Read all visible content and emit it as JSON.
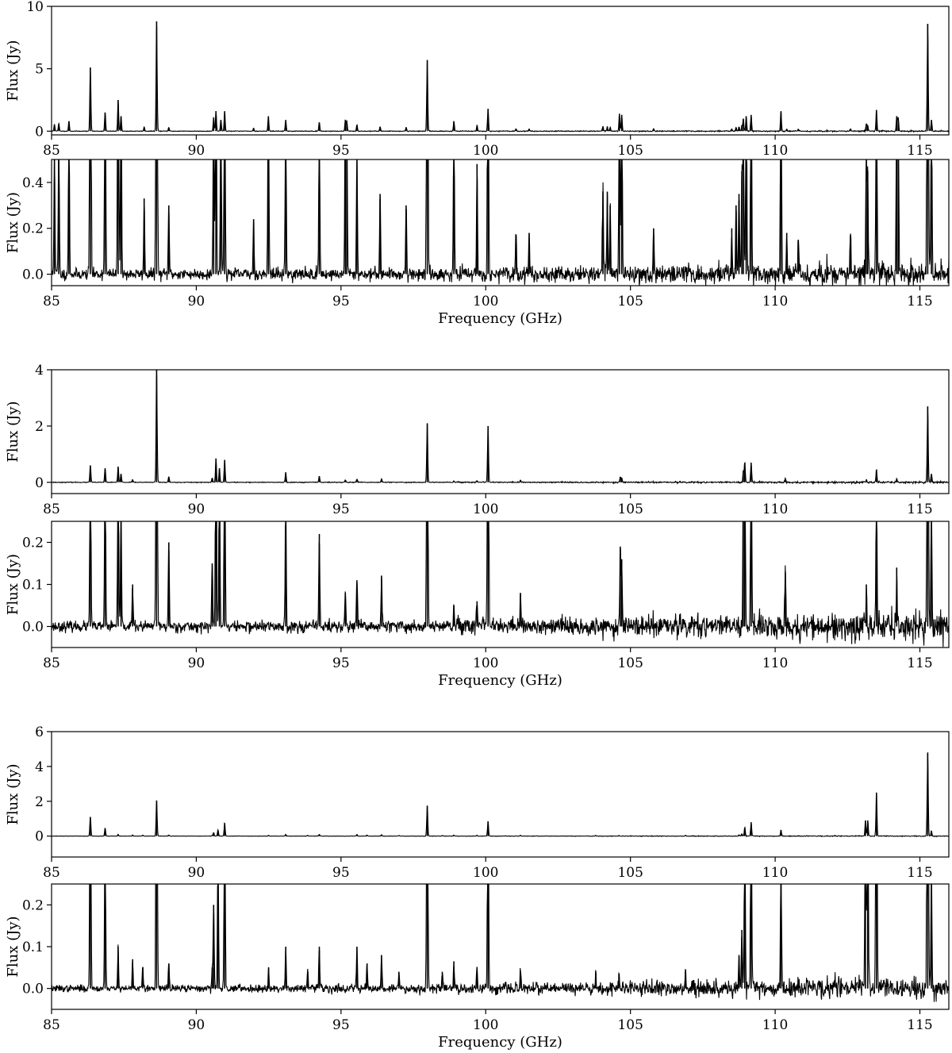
{
  "panels": [
    {
      "id": "p1",
      "ylabel": "Flux (Jy)",
      "xlabel": "",
      "xlim": [
        85,
        116
      ],
      "ylim": [
        -0.3,
        10
      ],
      "yticks": [
        0,
        5,
        10
      ],
      "ytick_labels": [
        "0",
        "5",
        "10"
      ],
      "seed": 11,
      "noise": 0.012,
      "noise_growth": 1.3
    },
    {
      "id": "p2",
      "ylabel": "Flux (Jy)",
      "xlabel": "Frequency (GHz)",
      "xlim": [
        85,
        116
      ],
      "ylim": [
        -0.05,
        0.5
      ],
      "yticks": [
        0.0,
        0.2,
        0.4
      ],
      "ytick_labels": [
        "0.0",
        "0.2",
        "0.4"
      ],
      "seed": 11,
      "noise": 0.012,
      "noise_growth": 1.3
    },
    {
      "id": "p3",
      "ylabel": "Flux (Jy)",
      "xlabel": "",
      "xlim": [
        85,
        116
      ],
      "ylim": [
        -0.4,
        4
      ],
      "yticks": [
        0,
        2,
        4
      ],
      "ytick_labels": [
        "0",
        "2",
        "4"
      ],
      "seed": 23,
      "noise": 0.006,
      "noise_growth": 2.2
    },
    {
      "id": "p4",
      "ylabel": "Flux (Jy)",
      "xlabel": "Frequency (GHz)",
      "xlim": [
        85,
        116
      ],
      "ylim": [
        -0.05,
        0.25
      ],
      "yticks": [
        0.0,
        0.1,
        0.2
      ],
      "ytick_labels": [
        "0.0",
        "0.1",
        "0.2"
      ],
      "seed": 23,
      "noise": 0.006,
      "noise_growth": 2.2
    },
    {
      "id": "p5",
      "ylabel": "Flux (Jy)",
      "xlabel": "",
      "xlim": [
        85,
        116
      ],
      "ylim": [
        -1.2,
        6
      ],
      "yticks": [
        0,
        2,
        4,
        6
      ],
      "ytick_labels": [
        "0",
        "2",
        "4",
        "6"
      ],
      "seed": 37,
      "noise": 0.004,
      "noise_growth": 2.5
    },
    {
      "id": "p6",
      "ylabel": "Flux (Jy)",
      "xlabel": "Frequency (GHz)",
      "xlim": [
        85,
        116
      ],
      "ylim": [
        -0.05,
        0.25
      ],
      "yticks": [
        0.0,
        0.1,
        0.2
      ],
      "ytick_labels": [
        "0.0",
        "0.1",
        "0.2"
      ],
      "seed": 37,
      "noise": 0.004,
      "noise_growth": 2.5
    }
  ],
  "xticks": [
    85,
    90,
    95,
    100,
    105,
    110,
    115
  ],
  "xtick_labels": [
    "85",
    "90",
    "95",
    "100",
    "105",
    "110",
    "115"
  ],
  "chart_data": [
    {
      "type": "line",
      "name": "spectrum-1",
      "xlabel": "Frequency (GHz)",
      "ylabel": "Flux (Jy)",
      "xlim": [
        85,
        116
      ],
      "ylim_full": [
        -0.3,
        10
      ],
      "ylim_zoom": [
        -0.05,
        0.5
      ],
      "lines": [
        {
          "x": 85.1,
          "y": 0.55
        },
        {
          "x": 85.25,
          "y": 0.6
        },
        {
          "x": 85.6,
          "y": 0.8
        },
        {
          "x": 86.34,
          "y": 5.1
        },
        {
          "x": 86.85,
          "y": 1.5
        },
        {
          "x": 87.3,
          "y": 2.5
        },
        {
          "x": 87.4,
          "y": 1.2
        },
        {
          "x": 88.2,
          "y": 0.33
        },
        {
          "x": 88.63,
          "y": 8.8
        },
        {
          "x": 89.05,
          "y": 0.3
        },
        {
          "x": 90.6,
          "y": 1.1
        },
        {
          "x": 90.68,
          "y": 1.6
        },
        {
          "x": 90.85,
          "y": 0.9
        },
        {
          "x": 90.98,
          "y": 1.6
        },
        {
          "x": 91.98,
          "y": 0.24
        },
        {
          "x": 92.49,
          "y": 1.2
        },
        {
          "x": 93.09,
          "y": 0.9
        },
        {
          "x": 94.25,
          "y": 0.7
        },
        {
          "x": 95.15,
          "y": 0.9
        },
        {
          "x": 95.2,
          "y": 0.8
        },
        {
          "x": 95.55,
          "y": 0.5
        },
        {
          "x": 96.35,
          "y": 0.35
        },
        {
          "x": 97.25,
          "y": 0.3
        },
        {
          "x": 97.98,
          "y": 5.7
        },
        {
          "x": 98.9,
          "y": 0.8
        },
        {
          "x": 99.7,
          "y": 0.48
        },
        {
          "x": 100.08,
          "y": 1.8
        },
        {
          "x": 101.05,
          "y": 0.17
        },
        {
          "x": 101.5,
          "y": 0.18
        },
        {
          "x": 104.05,
          "y": 0.36
        },
        {
          "x": 104.2,
          "y": 0.36
        },
        {
          "x": 104.3,
          "y": 0.3
        },
        {
          "x": 104.62,
          "y": 1.4
        },
        {
          "x": 104.7,
          "y": 1.3
        },
        {
          "x": 105.8,
          "y": 0.2
        },
        {
          "x": 108.5,
          "y": 0.2
        },
        {
          "x": 108.65,
          "y": 0.3
        },
        {
          "x": 108.75,
          "y": 0.35
        },
        {
          "x": 108.85,
          "y": 0.45
        },
        {
          "x": 108.9,
          "y": 1.0
        },
        {
          "x": 109.0,
          "y": 1.2
        },
        {
          "x": 109.17,
          "y": 1.3
        },
        {
          "x": 110.2,
          "y": 1.6
        },
        {
          "x": 110.4,
          "y": 0.18
        },
        {
          "x": 110.8,
          "y": 0.15
        },
        {
          "x": 112.6,
          "y": 0.17
        },
        {
          "x": 113.15,
          "y": 0.6
        },
        {
          "x": 113.2,
          "y": 0.45
        },
        {
          "x": 113.5,
          "y": 1.7
        },
        {
          "x": 114.2,
          "y": 1.2
        },
        {
          "x": 114.25,
          "y": 1.1
        },
        {
          "x": 115.27,
          "y": 8.6
        },
        {
          "x": 115.4,
          "y": 0.9
        }
      ]
    },
    {
      "type": "line",
      "name": "spectrum-2",
      "xlabel": "Frequency (GHz)",
      "ylabel": "Flux (Jy)",
      "xlim": [
        85,
        116
      ],
      "ylim_full": [
        -0.4,
        4
      ],
      "ylim_zoom": [
        -0.05,
        0.25
      ],
      "lines": [
        {
          "x": 86.34,
          "y": 0.6
        },
        {
          "x": 86.85,
          "y": 0.5
        },
        {
          "x": 87.3,
          "y": 0.55
        },
        {
          "x": 87.4,
          "y": 0.3
        },
        {
          "x": 87.8,
          "y": 0.1
        },
        {
          "x": 88.63,
          "y": 4.0
        },
        {
          "x": 89.05,
          "y": 0.2
        },
        {
          "x": 90.55,
          "y": 0.15
        },
        {
          "x": 90.68,
          "y": 0.85
        },
        {
          "x": 90.8,
          "y": 0.5
        },
        {
          "x": 90.98,
          "y": 0.8
        },
        {
          "x": 93.09,
          "y": 0.35
        },
        {
          "x": 94.25,
          "y": 0.22
        },
        {
          "x": 95.15,
          "y": 0.08
        },
        {
          "x": 95.55,
          "y": 0.11
        },
        {
          "x": 96.4,
          "y": 0.12
        },
        {
          "x": 97.98,
          "y": 2.1
        },
        {
          "x": 98.9,
          "y": 0.05
        },
        {
          "x": 99.7,
          "y": 0.06
        },
        {
          "x": 100.08,
          "y": 2.0
        },
        {
          "x": 101.2,
          "y": 0.08
        },
        {
          "x": 104.65,
          "y": 0.19
        },
        {
          "x": 104.7,
          "y": 0.16
        },
        {
          "x": 108.9,
          "y": 0.4
        },
        {
          "x": 108.95,
          "y": 0.7
        },
        {
          "x": 109.17,
          "y": 0.7
        },
        {
          "x": 110.35,
          "y": 0.13
        },
        {
          "x": 113.15,
          "y": 0.1
        },
        {
          "x": 113.5,
          "y": 0.45
        },
        {
          "x": 114.2,
          "y": 0.14
        },
        {
          "x": 115.27,
          "y": 2.7
        },
        {
          "x": 115.4,
          "y": 0.3
        }
      ]
    },
    {
      "type": "line",
      "name": "spectrum-3",
      "xlabel": "Frequency (GHz)",
      "ylabel": "Flux (Jy)",
      "xlim": [
        85,
        116
      ],
      "ylim_full": [
        -1.2,
        6
      ],
      "ylim_zoom": [
        -0.05,
        0.25
      ],
      "lines": [
        {
          "x": 86.34,
          "y": 1.1
        },
        {
          "x": 86.85,
          "y": 0.45
        },
        {
          "x": 87.3,
          "y": 0.1
        },
        {
          "x": 87.8,
          "y": 0.07
        },
        {
          "x": 88.15,
          "y": 0.05
        },
        {
          "x": 88.63,
          "y": 2.05
        },
        {
          "x": 89.05,
          "y": 0.06
        },
        {
          "x": 90.55,
          "y": 0.05
        },
        {
          "x": 90.6,
          "y": 0.2
        },
        {
          "x": 90.75,
          "y": 0.35
        },
        {
          "x": 90.98,
          "y": 0.75
        },
        {
          "x": 92.5,
          "y": 0.05
        },
        {
          "x": 93.09,
          "y": 0.1
        },
        {
          "x": 93.85,
          "y": 0.04
        },
        {
          "x": 94.25,
          "y": 0.1
        },
        {
          "x": 95.55,
          "y": 0.1
        },
        {
          "x": 95.9,
          "y": 0.06
        },
        {
          "x": 96.4,
          "y": 0.08
        },
        {
          "x": 97.0,
          "y": 0.04
        },
        {
          "x": 97.98,
          "y": 1.75
        },
        {
          "x": 98.5,
          "y": 0.04
        },
        {
          "x": 98.9,
          "y": 0.065
        },
        {
          "x": 99.7,
          "y": 0.05
        },
        {
          "x": 100.08,
          "y": 0.85
        },
        {
          "x": 101.2,
          "y": 0.04
        },
        {
          "x": 103.8,
          "y": 0.04
        },
        {
          "x": 104.6,
          "y": 0.035
        },
        {
          "x": 106.9,
          "y": 0.04
        },
        {
          "x": 108.75,
          "y": 0.08
        },
        {
          "x": 108.85,
          "y": 0.14
        },
        {
          "x": 108.95,
          "y": 0.5
        },
        {
          "x": 109.17,
          "y": 0.8
        },
        {
          "x": 110.2,
          "y": 0.35
        },
        {
          "x": 113.12,
          "y": 0.9
        },
        {
          "x": 113.2,
          "y": 0.9
        },
        {
          "x": 113.5,
          "y": 2.5
        },
        {
          "x": 115.27,
          "y": 4.8
        },
        {
          "x": 115.4,
          "y": 0.3
        }
      ]
    }
  ]
}
